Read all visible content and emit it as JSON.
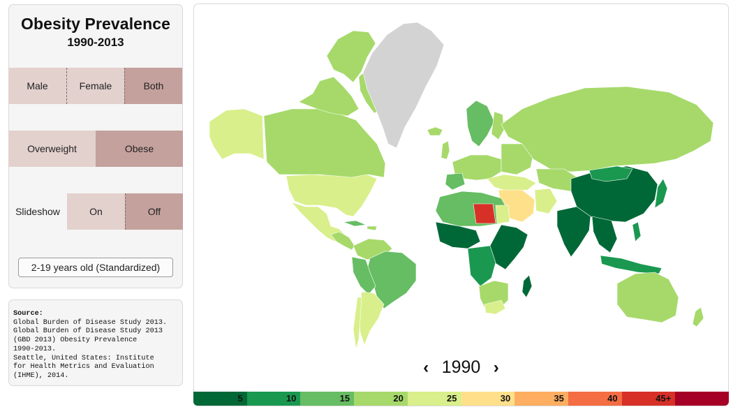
{
  "panel": {
    "title": "Obesity Prevalence",
    "years": "1990-2013",
    "sex_options": [
      {
        "label": "Male",
        "selected": false
      },
      {
        "label": "Female",
        "selected": false
      },
      {
        "label": "Both",
        "selected": true
      }
    ],
    "weight_options": [
      {
        "label": "Overweight",
        "selected": false
      },
      {
        "label": "Obese",
        "selected": true
      }
    ],
    "slideshow": {
      "label": "Slideshow",
      "options": [
        {
          "label": "On",
          "selected": false
        },
        {
          "label": "Off",
          "selected": true
        }
      ]
    },
    "age_button": "2-19 years old (Standardized)"
  },
  "source": {
    "heading": "Source:",
    "lines": [
      "Global Burden of Disease Study 2013.",
      "Global Burden of Disease Study 2013",
      "(GBD 2013) Obesity Prevalence",
      "1990-2013.",
      "Seattle, United States: Institute",
      "for Health Metrics and Evaluation",
      "(IHME), 2014."
    ]
  },
  "map": {
    "year": "1990",
    "prev_icon": "chevron-left-icon",
    "next_icon": "chevron-right-icon",
    "no_data_color": "#d3d3d3"
  },
  "legend": {
    "bins": [
      {
        "label": "5",
        "color": "#006837"
      },
      {
        "label": "10",
        "color": "#1a9850"
      },
      {
        "label": "15",
        "color": "#66bd63"
      },
      {
        "label": "20",
        "color": "#a6d96a"
      },
      {
        "label": "25",
        "color": "#d9ef8b"
      },
      {
        "label": "30",
        "color": "#fee08b"
      },
      {
        "label": "35",
        "color": "#fdae61"
      },
      {
        "label": "40",
        "color": "#f46d43"
      },
      {
        "label": "45+",
        "color": "#d73027"
      },
      {
        "label": "",
        "color": "#a50026"
      }
    ]
  }
}
